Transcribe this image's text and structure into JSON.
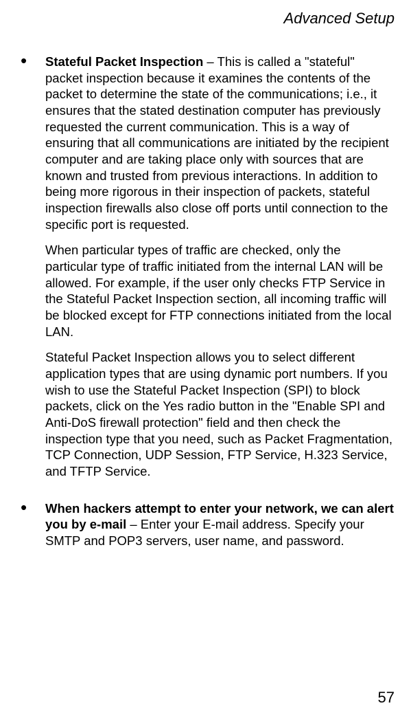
{
  "header": "Advanced Setup",
  "items": [
    {
      "title": "Stateful Packet Inspection",
      "after_title": " – This is called a \"stateful\" packet inspection because it examines the contents of the packet to determine the state of the communications; i.e., it ensures that the stated destination computer has previously requested the current communication. This is a way of ensuring that all communications are initiated by the recipient computer and are taking place only with sources that are known and trusted from previous interactions. In addition to being more rigorous in their inspection of packets, stateful inspection firewalls also close off ports until connection to the specific port is requested.",
      "paras": [
        "When particular types of traffic are checked, only the particular type of traffic initiated from the internal LAN will be allowed. For example, if the user only checks FTP Service in the Stateful Packet Inspection section, all incoming traffic will be blocked except for FTP connections initiated from the local LAN.",
        "Stateful Packet Inspection allows you to select different application types that are using dynamic port numbers. If you wish to use the Stateful Packet Inspection (SPI) to block packets, click on the Yes radio button in the \"Enable SPI and Anti-DoS firewall protection\" field and then check the inspection type that you need, such as Packet Fragmentation, TCP Connection, UDP Session, FTP Service, H.323 Service, and TFTP Service."
      ]
    },
    {
      "title": "When hackers attempt to enter your network, we can alert you by e-mail",
      "after_title": " – Enter your E-mail address. Specify your SMTP and POP3 servers, user name, and password.",
      "paras": []
    }
  ],
  "page_number": "57"
}
